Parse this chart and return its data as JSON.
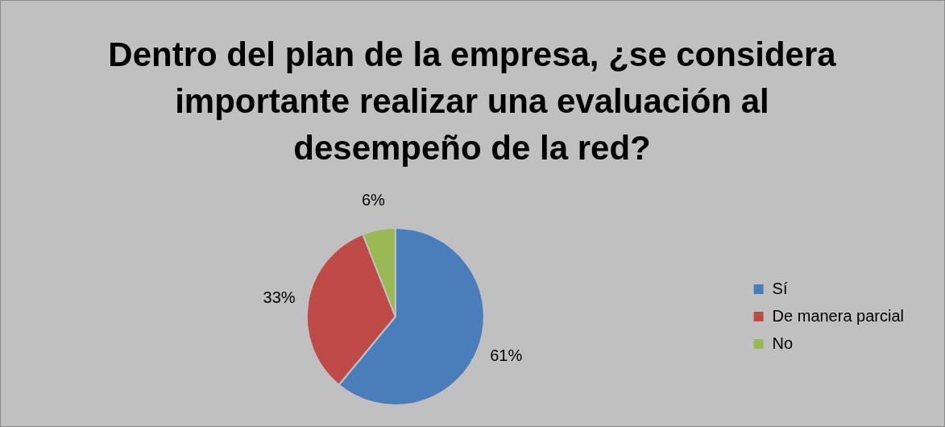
{
  "chart_data": {
    "type": "pie",
    "title": "Dentro del plan de la empresa, ¿se considera importante realizar una evaluación al desempeño de la red?",
    "categories": [
      "Sí",
      "De manera parcial",
      "No"
    ],
    "values": [
      61,
      33,
      6
    ],
    "colors": [
      "#4a7ebb",
      "#be4b48",
      "#98b954"
    ],
    "value_labels": [
      "61%",
      "33%",
      "6%"
    ],
    "legend": "right"
  }
}
